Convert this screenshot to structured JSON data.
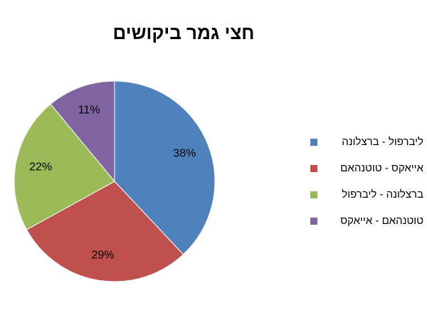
{
  "chart_data": {
    "type": "pie",
    "title": "חצי גמר ביקושים",
    "categories": [
      "ליברפול - ברצלונה",
      "אייאקס - טוטנהאם",
      "ברצלונה - ליברפול",
      "טוטנהאם - אייאקס"
    ],
    "values": [
      38,
      29,
      22,
      11
    ],
    "value_labels": [
      "38%",
      "29%",
      "22%",
      "11%"
    ],
    "colors": [
      "#4f81bd",
      "#c0504d",
      "#9bbb59",
      "#8064a2"
    ],
    "legend": "right"
  }
}
